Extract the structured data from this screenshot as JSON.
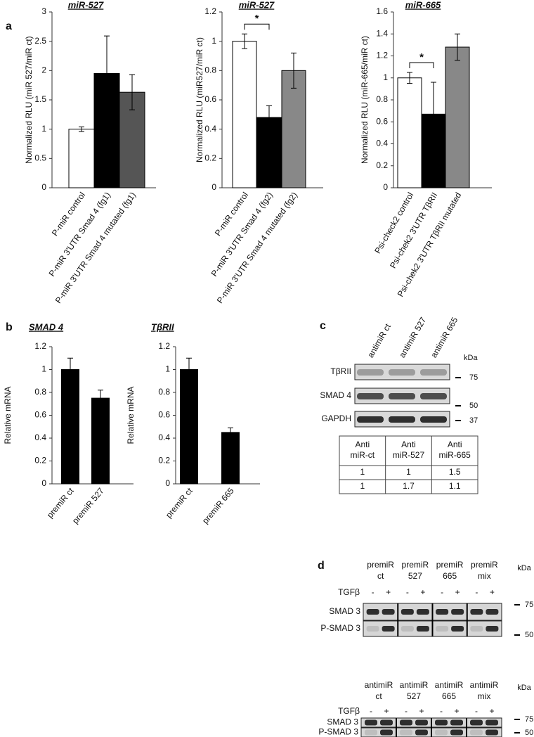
{
  "panel_labels": [
    "a",
    "b",
    "c",
    "d"
  ],
  "chart_data": [
    {
      "type": "bar",
      "title": "miR-527",
      "ylabel": "Normalized RLU (miR 527/miR ct)",
      "categories": [
        "P-miR control",
        "P-miR 3'UTR Smad 4 (fg1)",
        "P-miR 3'UTR Smad 4 mutated (fg1)"
      ],
      "values": [
        1.0,
        1.95,
        1.63
      ],
      "errors": [
        0.04,
        0.64,
        0.3
      ],
      "colors": [
        "#ffffff",
        "#000000",
        "#555555"
      ],
      "ylim": [
        0,
        3
      ],
      "yticks": [
        0,
        0.5,
        1,
        1.5,
        2,
        2.5,
        3
      ]
    },
    {
      "type": "bar",
      "title": "miR-527",
      "ylabel": "Normalized RLU (miR527/miR ct)",
      "categories": [
        "P-miR control",
        "P-miR 3'UTR Smad 4 (fg2)",
        "P-miR 3'UTR Smad 4 mutated (fg2)"
      ],
      "values": [
        1.0,
        0.48,
        0.8
      ],
      "errors": [
        0.05,
        0.08,
        0.12
      ],
      "colors": [
        "#ffffff",
        "#000000",
        "#888888"
      ],
      "ylim": [
        0,
        1.2
      ],
      "yticks": [
        0,
        0.2,
        0.4,
        0.6,
        0.8,
        1,
        1.2
      ],
      "annotation": "*"
    },
    {
      "type": "bar",
      "title": "miR-665",
      "ylabel": "Normalized RLU (miR-665/miR ct)",
      "categories": [
        "Psi-check2 control",
        "Psi-chek2 3'UTR TβRII",
        "Psi-chek2 3'UTR TβRII mutated"
      ],
      "values": [
        1.0,
        0.67,
        1.28
      ],
      "errors": [
        0.05,
        0.29,
        0.12
      ],
      "colors": [
        "#ffffff",
        "#000000",
        "#888888"
      ],
      "ylim": [
        0,
        1.6
      ],
      "yticks": [
        0,
        0.2,
        0.4,
        0.6,
        0.8,
        1,
        1.2,
        1.4,
        1.6
      ],
      "annotation": "*"
    },
    {
      "type": "bar",
      "title": "SMAD 4",
      "ylabel": "Relative mRNA",
      "categories": [
        "premiR ct",
        "premiR 527"
      ],
      "values": [
        1.0,
        0.75
      ],
      "errors": [
        0.1,
        0.07
      ],
      "colors": [
        "#000000",
        "#000000"
      ],
      "ylim": [
        0,
        1.2
      ],
      "yticks": [
        0,
        0.2,
        0.4,
        0.6,
        0.8,
        1,
        1.2
      ]
    },
    {
      "type": "bar",
      "title": "TβRII",
      "ylabel": "Relative mRNA",
      "categories": [
        "premiR ct",
        "premiR 665"
      ],
      "values": [
        1.0,
        0.45
      ],
      "errors": [
        0.1,
        0.04
      ],
      "colors": [
        "#000000",
        "#000000"
      ],
      "ylim": [
        0,
        1.2
      ],
      "yticks": [
        0,
        0.2,
        0.4,
        0.6,
        0.8,
        1,
        1.2
      ]
    }
  ],
  "panel_c": {
    "lanes": [
      "antimiR ct",
      "antimiR 527",
      "antimiR 665"
    ],
    "unit": "kDa",
    "rows": [
      "TβRII",
      "SMAD 4",
      "GAPDH"
    ],
    "markers": [
      75,
      50,
      37
    ],
    "table": {
      "header": [
        [
          "Anti",
          "miR-ct"
        ],
        [
          "Anti",
          "miR-527"
        ],
        [
          "Anti",
          "miR-665"
        ]
      ],
      "rows": [
        [
          1,
          1,
          1.5
        ],
        [
          1,
          1.7,
          1.1
        ]
      ]
    }
  },
  "panel_d": {
    "unit": "kDa",
    "treatment": "TGFβ",
    "levels": [
      "-",
      "+"
    ],
    "rows": [
      "SMAD 3",
      "P-SMAD 3"
    ],
    "markers": [
      75,
      50
    ],
    "blots": [
      {
        "groups": [
          [
            "premiR",
            "ct"
          ],
          [
            "premiR",
            "527"
          ],
          [
            "premiR",
            "665"
          ],
          [
            "premiR",
            "mix"
          ]
        ]
      },
      {
        "groups": [
          [
            "antimiR",
            "ct"
          ],
          [
            "antimiR",
            "527"
          ],
          [
            "antimiR",
            "665"
          ],
          [
            "antimiR",
            "mix"
          ]
        ]
      }
    ]
  }
}
